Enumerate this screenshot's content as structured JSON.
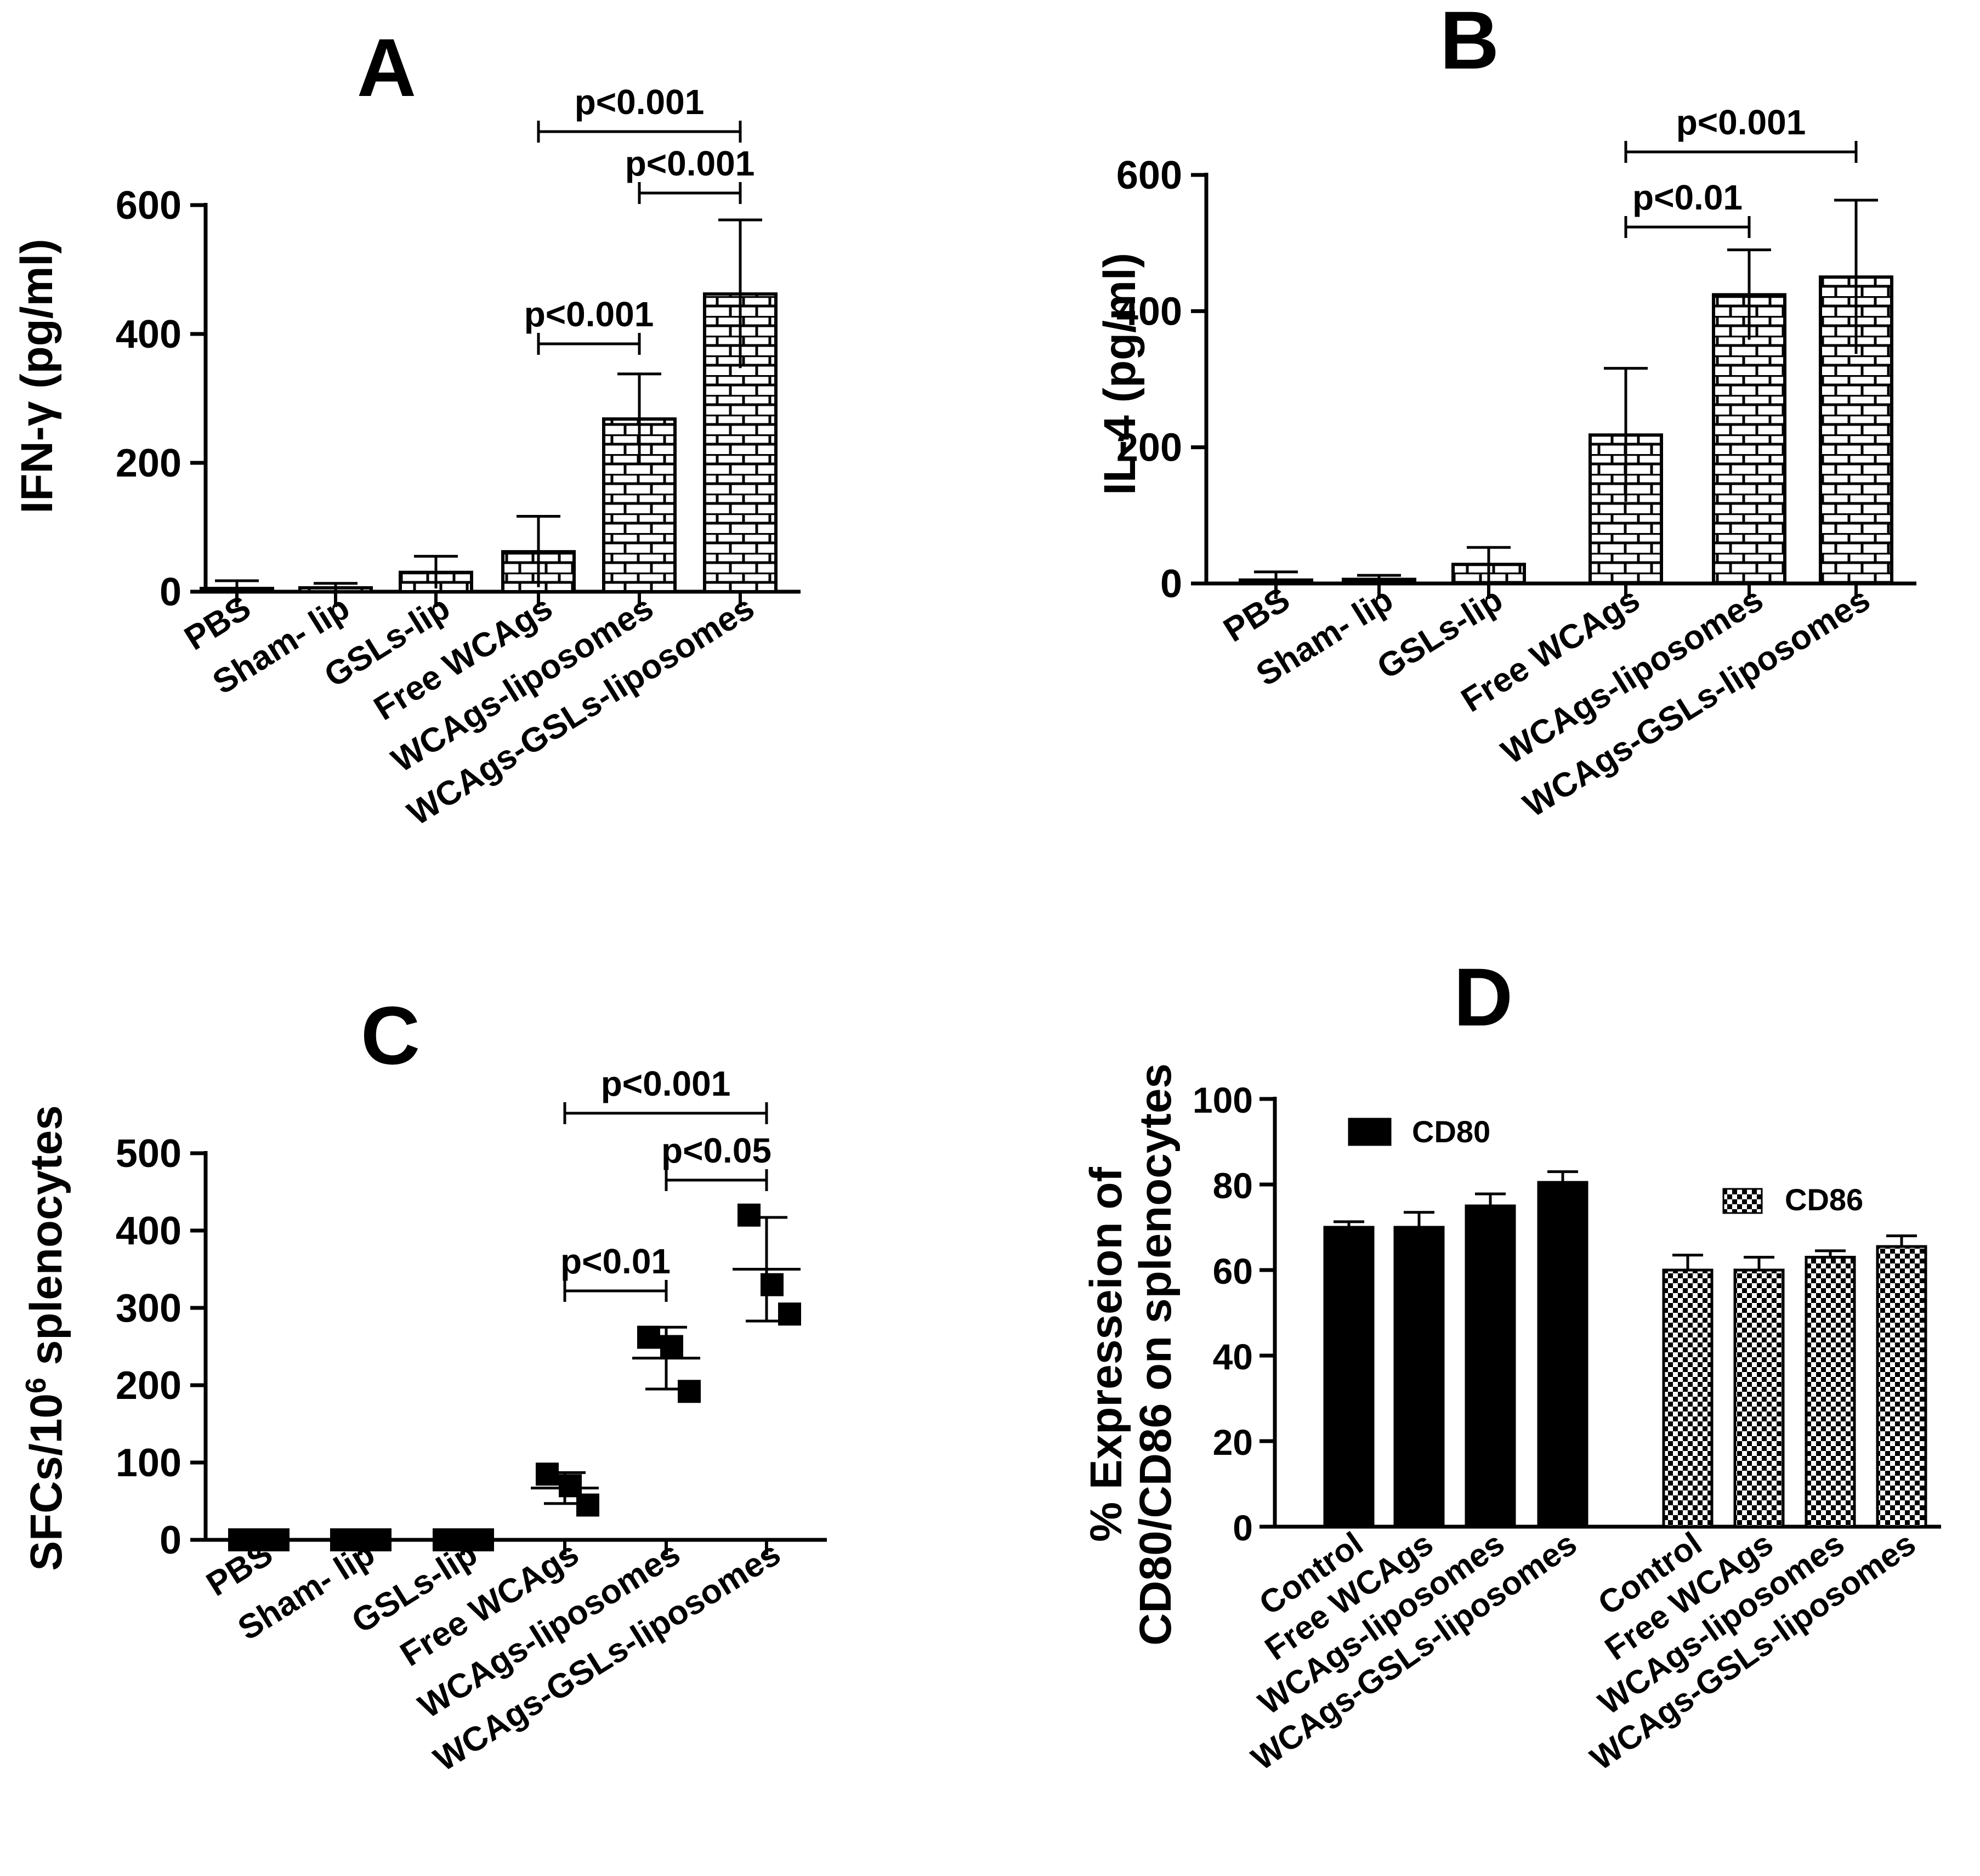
{
  "figure": {
    "panels": [
      {
        "id": "A",
        "letter": "A"
      },
      {
        "id": "B",
        "letter": "B"
      },
      {
        "id": "C",
        "letter": "C"
      },
      {
        "id": "D",
        "letter": "D"
      }
    ]
  },
  "colors": {
    "ink": "#000000",
    "background": "#ffffff",
    "pattern_bg": "#ffffff"
  },
  "chart_data": [
    {
      "panel": "A",
      "type": "bar",
      "title": "A",
      "xlabel": "",
      "ylabel": "IFN-γ (pg/ml)",
      "ylim": [
        0,
        600
      ],
      "yticks": [
        0,
        200,
        400,
        600
      ],
      "categories": [
        "PBS",
        "Sham- lip",
        "GSLs-lip",
        "Free WCAgs",
        "WCAgs-liposomes",
        "WCAgs-GSLs-liposomes"
      ],
      "values": [
        5,
        6,
        30,
        62,
        268,
        462
      ],
      "errors": [
        12,
        7,
        25,
        55,
        70,
        115
      ],
      "pattern": "brick",
      "significance": [
        {
          "from": 3,
          "to": 5,
          "label": "p<0.001"
        },
        {
          "from": 4,
          "to": 5,
          "label": "p<0.001"
        },
        {
          "from": 3,
          "to": 4,
          "label": "p<0.001"
        }
      ]
    },
    {
      "panel": "B",
      "type": "bar",
      "title": "B",
      "xlabel": "",
      "ylabel": "IL-4 (pg/ml)",
      "ylim": [
        0,
        600
      ],
      "yticks": [
        0,
        200,
        400,
        600
      ],
      "categories": [
        "PBS",
        "Sham- lip",
        "GSLs-lip",
        "Free WCAgs",
        "WCAgs-liposomes",
        "WCAgs-GSLs-liposomes"
      ],
      "values": [
        5,
        6,
        28,
        218,
        424,
        450
      ],
      "errors": [
        12,
        6,
        25,
        98,
        66,
        113
      ],
      "pattern": "brick",
      "significance": [
        {
          "from": 3,
          "to": 5,
          "label": "p<0.001"
        },
        {
          "from": 3,
          "to": 4,
          "label": "p<0.01"
        }
      ]
    },
    {
      "panel": "C",
      "type": "scatter",
      "title": "C",
      "xlabel": "",
      "ylabel_main": "SFCs/10",
      "ylabel_sup": "6",
      "ylabel_tail": " splenocytes",
      "ylim": [
        0,
        500
      ],
      "yticks": [
        0,
        100,
        200,
        300,
        400,
        500
      ],
      "categories": [
        "PBS",
        "Sham- lip",
        "GSLs-lip",
        "Free WCAgs",
        "WCAgs-liposomes",
        "WCAgs-GSLs-liposomes"
      ],
      "points": [
        [
          0,
          0,
          0
        ],
        [
          0,
          0,
          0
        ],
        [
          0,
          0,
          0
        ],
        [
          85,
          70,
          45
        ],
        [
          262,
          250,
          192
        ],
        [
          420,
          330,
          292
        ]
      ],
      "means": [
        0,
        0,
        0,
        67,
        235,
        350
      ],
      "sd": [
        0,
        0,
        0,
        20,
        40,
        67
      ],
      "significance": [
        {
          "from": 3,
          "to": 5,
          "label": "p<0.001"
        },
        {
          "from": 4,
          "to": 5,
          "label": "p<0.05"
        },
        {
          "from": 3,
          "to": 4,
          "label": "p<0.01"
        }
      ]
    },
    {
      "panel": "D",
      "type": "bar",
      "title": "D",
      "xlabel": "",
      "ylabel_line1": "% Expresseion of",
      "ylabel_line2": "CD80/CD86 on splenocytes",
      "ylim": [
        0,
        100
      ],
      "yticks": [
        0,
        20,
        40,
        60,
        80,
        100
      ],
      "series": [
        {
          "name": "CD80",
          "fill": "solid",
          "categories": [
            "Control",
            "Free WCAgs",
            "WCAgs-liposomes",
            "WCAgs-GSLs-liposomes"
          ],
          "values": [
            70,
            70,
            75,
            80.5
          ],
          "errors": [
            1.3,
            3.5,
            2.8,
            2.5
          ]
        },
        {
          "name": "CD86",
          "fill": "checker",
          "categories": [
            "Control",
            "Free WCAgs",
            "WCAgs-liposomes",
            "WCAgs-GSLs-liposomes"
          ],
          "values": [
            60,
            60,
            63,
            65.5
          ],
          "errors": [
            3.5,
            3,
            1.5,
            2.5
          ]
        }
      ]
    }
  ]
}
